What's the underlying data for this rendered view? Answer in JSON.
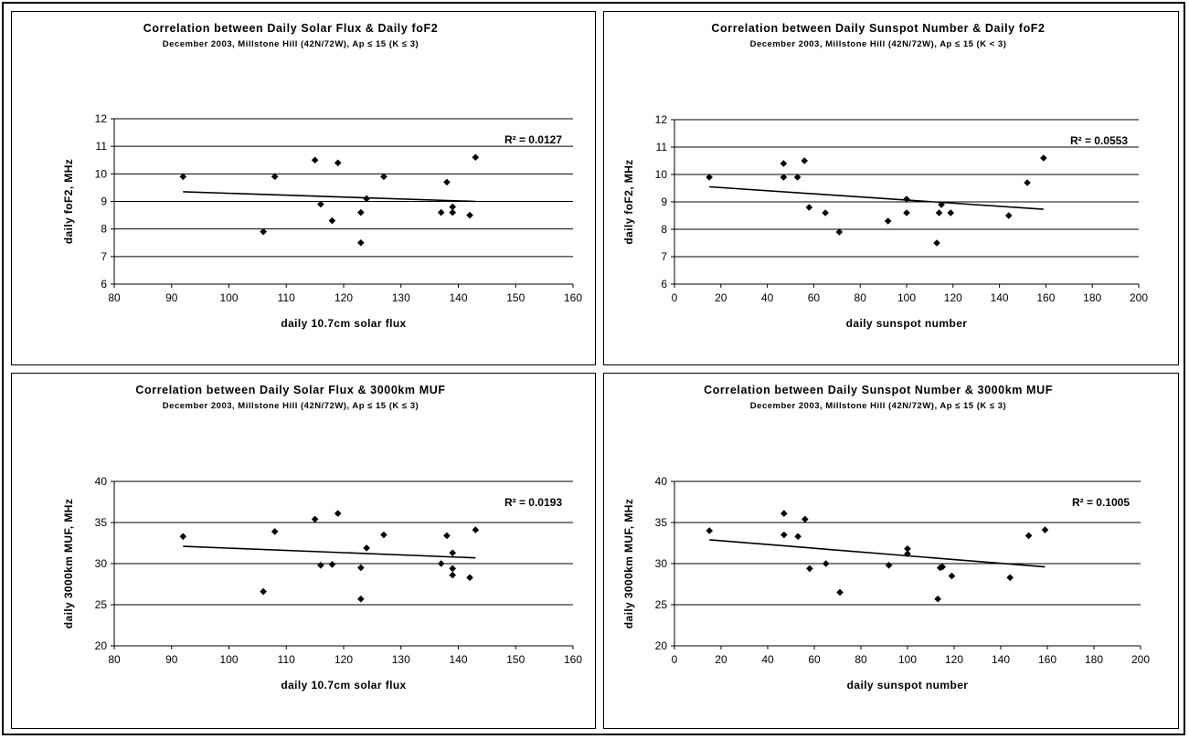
{
  "chart_data": [
    {
      "type": "scatter",
      "title": "Correlation between Daily Solar Flux & Daily foF2",
      "subtitle": "December 2003, Millstone Hill (42N/72W), Ap ≤ 15 (K ≤ 3)",
      "xlabel": "daily 10.7cm solar flux",
      "ylabel": "daily foF2, MHz",
      "xlim": [
        80,
        160
      ],
      "ylim": [
        6,
        12
      ],
      "xticks": [
        80,
        90,
        100,
        110,
        120,
        130,
        140,
        150,
        160
      ],
      "yticks": [
        6,
        7,
        8,
        9,
        10,
        11,
        12
      ],
      "grid": "horizontal",
      "r2_label": "R² = 0.0127",
      "trendline": [
        [
          92,
          9.35
        ],
        [
          143,
          9.0
        ]
      ],
      "points": [
        [
          92,
          9.9
        ],
        [
          106,
          7.9
        ],
        [
          108,
          9.9
        ],
        [
          115,
          10.5
        ],
        [
          116,
          8.9
        ],
        [
          118,
          8.3
        ],
        [
          119,
          10.4
        ],
        [
          123,
          8.6
        ],
        [
          123,
          7.5
        ],
        [
          124,
          9.1
        ],
        [
          127,
          9.9
        ],
        [
          137,
          8.6
        ],
        [
          138,
          9.7
        ],
        [
          139,
          8.8
        ],
        [
          139,
          8.6
        ],
        [
          142,
          8.5
        ],
        [
          143,
          10.6
        ]
      ]
    },
    {
      "type": "scatter",
      "title": "Correlation between Daily Sunspot Number & Daily foF2",
      "subtitle": "December 2003, Millstone Hill (42N/72W), Ap ≤ 15 (K < 3)",
      "xlabel": "daily sunspot number",
      "ylabel": "daily foF2, MHz",
      "xlim": [
        0,
        200
      ],
      "ylim": [
        6,
        12
      ],
      "xticks": [
        0,
        20,
        40,
        60,
        80,
        100,
        120,
        140,
        160,
        180,
        200
      ],
      "yticks": [
        6,
        7,
        8,
        9,
        10,
        11,
        12
      ],
      "grid": "horizontal",
      "r2_label": "R² = 0.0553",
      "trendline": [
        [
          15,
          9.55
        ],
        [
          159,
          8.73
        ]
      ],
      "points": [
        [
          15,
          9.9
        ],
        [
          47,
          10.4
        ],
        [
          47,
          9.9
        ],
        [
          53,
          9.9
        ],
        [
          56,
          10.5
        ],
        [
          58,
          8.8
        ],
        [
          65,
          8.6
        ],
        [
          71,
          7.9
        ],
        [
          92,
          8.3
        ],
        [
          100,
          9.1
        ],
        [
          100,
          8.6
        ],
        [
          113,
          7.5
        ],
        [
          114,
          8.6
        ],
        [
          115,
          8.9
        ],
        [
          119,
          8.6
        ],
        [
          144,
          8.5
        ],
        [
          152,
          9.7
        ],
        [
          159,
          10.6
        ]
      ]
    },
    {
      "type": "scatter",
      "title": "Correlation between Daily Solar Flux & 3000km MUF",
      "subtitle": "December 2003, Millstone Hill (42N/72W), Ap ≤ 15 (K ≤ 3)",
      "xlabel": "daily 10.7cm solar flux",
      "ylabel": "daily 3000km MUF, MHz",
      "xlim": [
        80,
        160
      ],
      "ylim": [
        20,
        40
      ],
      "xticks": [
        80,
        90,
        100,
        110,
        120,
        130,
        140,
        150,
        160
      ],
      "yticks": [
        20,
        25,
        30,
        35,
        40
      ],
      "grid": "horizontal",
      "r2_label": "R² = 0.0193",
      "trendline": [
        [
          92,
          32.1
        ],
        [
          143,
          30.7
        ]
      ],
      "points": [
        [
          92,
          33.3
        ],
        [
          106,
          26.6
        ],
        [
          108,
          33.9
        ],
        [
          115,
          35.4
        ],
        [
          116,
          29.8
        ],
        [
          118,
          29.9
        ],
        [
          119,
          36.1
        ],
        [
          123,
          29.5
        ],
        [
          123,
          25.7
        ],
        [
          124,
          31.9
        ],
        [
          127,
          33.5
        ],
        [
          137,
          30.0
        ],
        [
          138,
          33.4
        ],
        [
          139,
          31.3
        ],
        [
          139,
          29.4
        ],
        [
          139,
          28.6
        ],
        [
          142,
          28.3
        ],
        [
          143,
          34.1
        ]
      ]
    },
    {
      "type": "scatter",
      "title": "Correlation between Daily Sunspot Number & 3000km MUF",
      "subtitle": "December 2003, Millstone Hill (42N/72W), Ap ≤ 15 (K ≤ 3)",
      "xlabel": "daily sunspot number",
      "ylabel": "daily 3000km MUF, MHz",
      "xlim": [
        0,
        200
      ],
      "ylim": [
        20,
        40
      ],
      "xticks": [
        0,
        20,
        40,
        60,
        80,
        100,
        120,
        140,
        160,
        180,
        200
      ],
      "yticks": [
        20,
        25,
        30,
        35,
        40
      ],
      "grid": "horizontal",
      "r2_label": "R² = 0.1005",
      "trendline": [
        [
          15,
          32.9
        ],
        [
          159,
          29.6
        ]
      ],
      "points": [
        [
          15,
          34.0
        ],
        [
          47,
          36.1
        ],
        [
          47,
          33.5
        ],
        [
          53,
          33.3
        ],
        [
          56,
          35.4
        ],
        [
          58,
          29.4
        ],
        [
          65,
          30.0
        ],
        [
          71,
          26.5
        ],
        [
          92,
          29.8
        ],
        [
          100,
          31.8
        ],
        [
          100,
          31.2
        ],
        [
          113,
          25.7
        ],
        [
          114,
          29.5
        ],
        [
          115,
          29.6
        ],
        [
          119,
          28.5
        ],
        [
          144,
          28.3
        ],
        [
          152,
          33.4
        ],
        [
          159,
          34.1
        ]
      ]
    }
  ]
}
